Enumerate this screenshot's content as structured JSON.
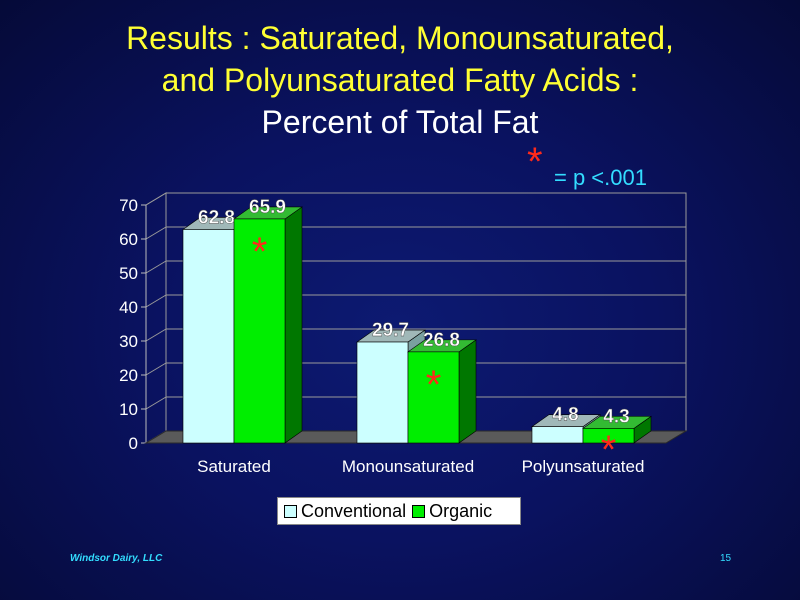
{
  "title": {
    "line1": "Results : Saturated, Monounsaturated,",
    "line2": "and Polyunsaturated Fatty Acids :",
    "line3": "Percent of Total Fat"
  },
  "significance": {
    "marker": "*",
    "text": "= p <.001"
  },
  "chart_data": {
    "type": "bar",
    "categories": [
      "Saturated",
      "Monounsaturated",
      "Polyunsaturated"
    ],
    "series": [
      {
        "name": "Conventional",
        "values": [
          62.8,
          29.7,
          4.8
        ],
        "color": "#ccffff"
      },
      {
        "name": "Organic",
        "values": [
          65.9,
          26.8,
          4.3
        ],
        "color": "#00ee00"
      }
    ],
    "data_labels": [
      [
        "62.8",
        "29.7",
        "4.8"
      ],
      [
        "65.9",
        "26.8",
        "4.3"
      ]
    ],
    "significant": [
      true,
      true,
      true
    ],
    "ylim": [
      0,
      70
    ],
    "yticks": [
      0,
      10,
      20,
      30,
      40,
      50,
      60,
      70
    ],
    "grid": true,
    "legend_position": "bottom",
    "three_d": true
  },
  "footer": {
    "left": "Windsor Dairy, LLC",
    "right": "15"
  },
  "colors": {
    "title": "#ffff33",
    "subtitle": "#ffffff",
    "accent": "#33ddff",
    "star": "#ff2a1a"
  }
}
